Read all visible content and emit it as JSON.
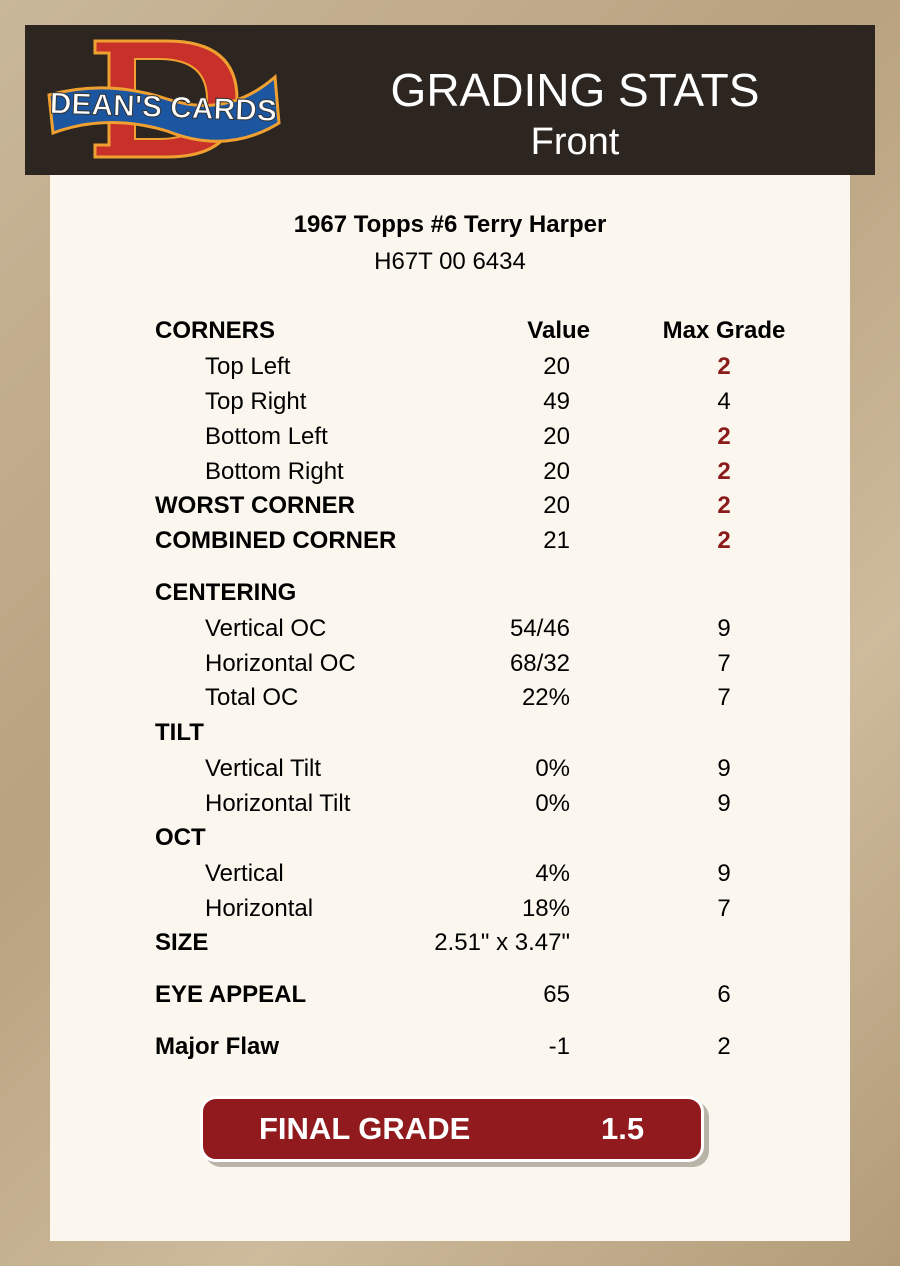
{
  "header": {
    "logo_text": "DEAN'S CARDS",
    "title": "GRADING STATS",
    "subtitle": "Front"
  },
  "card": {
    "name": "1967 Topps #6 Terry Harper",
    "id": "H67T 00 6434"
  },
  "columns": {
    "value": "Value",
    "max": "Max Grade"
  },
  "rows": [
    {
      "label": "CORNERS",
      "style": "section-header"
    },
    {
      "label": "Top Left",
      "value": "20",
      "max": "2",
      "max_red": true,
      "style": "indent"
    },
    {
      "label": "Top Right",
      "value": "49",
      "max": "4",
      "style": "indent"
    },
    {
      "label": "Bottom Left",
      "value": "20",
      "max": "2",
      "max_red": true,
      "style": "indent"
    },
    {
      "label": "Bottom Right",
      "value": "20",
      "max": "2",
      "max_red": true,
      "style": "indent"
    },
    {
      "label": "WORST CORNER",
      "value": "20",
      "max": "2",
      "max_red": true,
      "style": "bold"
    },
    {
      "label": "COMBINED CORNER",
      "value": "21",
      "max": "2",
      "max_red": true,
      "style": "bold"
    },
    {
      "label": "CENTERING",
      "style": "bold"
    },
    {
      "label": "Vertical OC",
      "value": "54/46",
      "max": "9",
      "style": "indent"
    },
    {
      "label": "Horizontal OC",
      "value": "68/32",
      "max": "7",
      "style": "indent"
    },
    {
      "label": "Total OC",
      "value": "22%",
      "max": "7",
      "style": "indent"
    },
    {
      "label": "TILT",
      "style": "bold"
    },
    {
      "label": "Vertical Tilt",
      "value": "0%",
      "max": "9",
      "style": "indent"
    },
    {
      "label": "Horizontal Tilt",
      "value": "0%",
      "max": "9",
      "style": "indent"
    },
    {
      "label": "OCT",
      "style": "bold"
    },
    {
      "label": "Vertical",
      "value": "4%",
      "max": "9",
      "style": "indent"
    },
    {
      "label": "Horizontal",
      "value": "18%",
      "max": "7",
      "style": "indent"
    },
    {
      "label": "SIZE",
      "value": "2.51\" x 3.47\"",
      "style": "bold"
    },
    {
      "label": "EYE APPEAL",
      "value": "65",
      "max": "6",
      "style": "bold"
    },
    {
      "label": "Major Flaw",
      "value": "-1",
      "max": "2",
      "style": "bold"
    }
  ],
  "final": {
    "label": "FINAL GRADE",
    "value": "1.5"
  },
  "colors": {
    "header_bg": "#2d2620",
    "panel_bg": "#fbf7ee",
    "accent_red": "#901a1d",
    "grade_red": "#8b1a1a"
  }
}
